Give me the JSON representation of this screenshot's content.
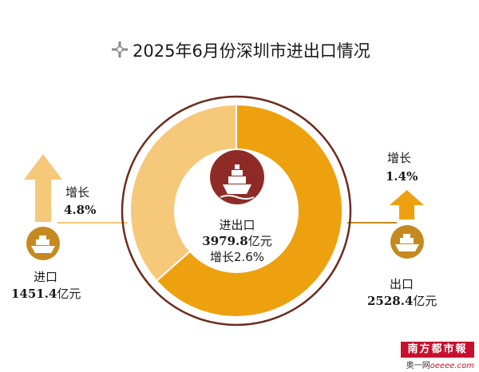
{
  "title": "2025年6月份深圳市进出口情况",
  "colors": {
    "import": "#f6c87a",
    "export": "#eea10f",
    "ring": "#6b2d1e",
    "ship_badge": "#c48a20",
    "total_badge": "#8f2b26"
  },
  "chart_data": {
    "type": "pie",
    "style": "donut",
    "categories": [
      "进口",
      "出口"
    ],
    "values": [
      1451.4,
      2528.4
    ],
    "unit": "亿元",
    "total": 3979.8,
    "growth": {
      "进口": 4.8,
      "出口": 1.4,
      "total": 2.6
    }
  },
  "labels": {
    "center": {
      "line1": "进出口",
      "value": "3979.8",
      "unit": "亿元",
      "growth": "增长2.6%"
    },
    "import": {
      "name": "进口",
      "value": "1451.4",
      "unit": "亿元",
      "growth_label": "增长",
      "growth_value": "4.8%"
    },
    "export": {
      "name": "出口",
      "value": "2528.4",
      "unit": "亿元",
      "growth_label": "增长",
      "growth_value": "1.4%"
    }
  },
  "watermark": {
    "badge": "南方都市報",
    "prefix": "奥一网",
    "site": "oeeee.com"
  },
  "icons": {
    "title": "cross-icon",
    "ship": "ship-icon",
    "arrow": "up-arrow-icon"
  }
}
